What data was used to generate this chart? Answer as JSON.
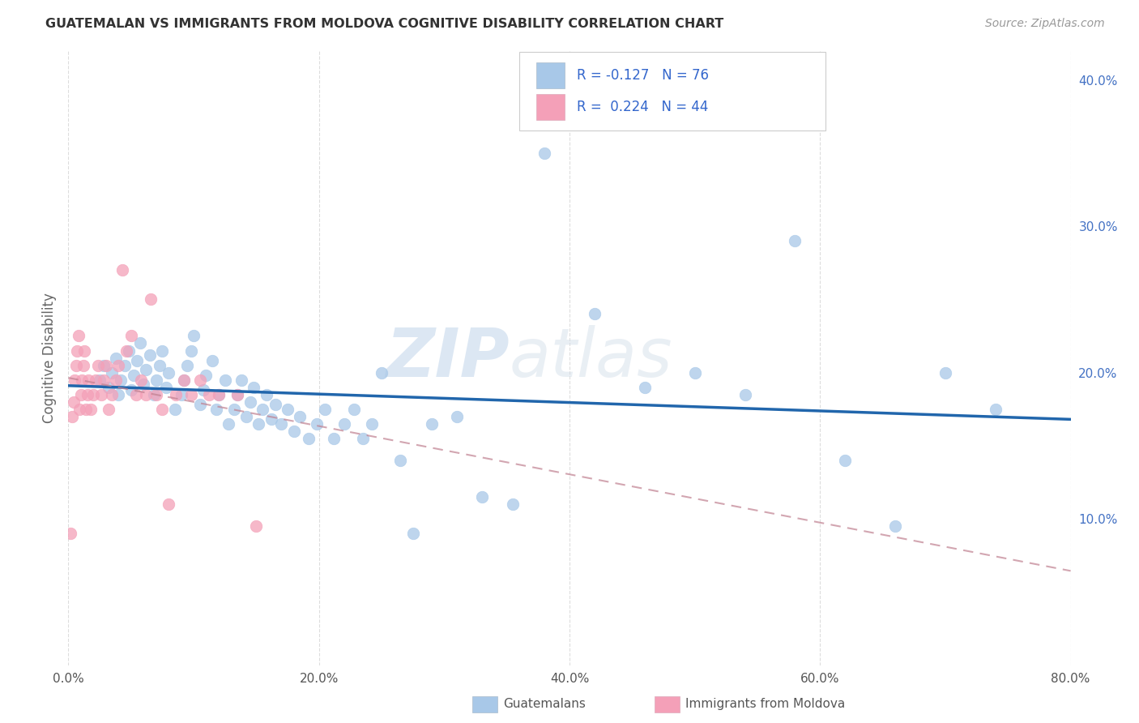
{
  "title": "GUATEMALAN VS IMMIGRANTS FROM MOLDOVA COGNITIVE DISABILITY CORRELATION CHART",
  "source": "Source: ZipAtlas.com",
  "ylabel": "Cognitive Disability",
  "legend_label1": "Guatemalans",
  "legend_label2": "Immigrants from Moldova",
  "R1": -0.127,
  "N1": 76,
  "R2": 0.224,
  "N2": 44,
  "color_blue": "#a8c8e8",
  "color_pink": "#f4a0b8",
  "line_color_blue": "#2166ac",
  "line_color_pink": "#c08090",
  "watermark_zip": "ZIP",
  "watermark_atlas": "atlas",
  "xlim": [
    0.0,
    0.8
  ],
  "ylim": [
    0.0,
    0.42
  ],
  "xticks": [
    0.0,
    0.2,
    0.4,
    0.6,
    0.8
  ],
  "yticks_right": [
    0.1,
    0.2,
    0.3,
    0.4
  ],
  "blue_x": [
    0.025,
    0.028,
    0.032,
    0.035,
    0.038,
    0.04,
    0.042,
    0.045,
    0.048,
    0.05,
    0.052,
    0.055,
    0.057,
    0.06,
    0.062,
    0.065,
    0.068,
    0.07,
    0.073,
    0.075,
    0.078,
    0.08,
    0.085,
    0.09,
    0.092,
    0.095,
    0.098,
    0.1,
    0.105,
    0.108,
    0.11,
    0.115,
    0.118,
    0.12,
    0.125,
    0.128,
    0.132,
    0.135,
    0.138,
    0.142,
    0.145,
    0.148,
    0.152,
    0.155,
    0.158,
    0.162,
    0.165,
    0.17,
    0.175,
    0.18,
    0.185,
    0.192,
    0.198,
    0.205,
    0.212,
    0.22,
    0.228,
    0.235,
    0.242,
    0.25,
    0.265,
    0.275,
    0.29,
    0.31,
    0.33,
    0.355,
    0.38,
    0.42,
    0.46,
    0.5,
    0.54,
    0.58,
    0.62,
    0.66,
    0.7,
    0.74
  ],
  "blue_y": [
    0.195,
    0.205,
    0.19,
    0.2,
    0.21,
    0.185,
    0.195,
    0.205,
    0.215,
    0.188,
    0.198,
    0.208,
    0.22,
    0.192,
    0.202,
    0.212,
    0.185,
    0.195,
    0.205,
    0.215,
    0.19,
    0.2,
    0.175,
    0.185,
    0.195,
    0.205,
    0.215,
    0.225,
    0.178,
    0.188,
    0.198,
    0.208,
    0.175,
    0.185,
    0.195,
    0.165,
    0.175,
    0.185,
    0.195,
    0.17,
    0.18,
    0.19,
    0.165,
    0.175,
    0.185,
    0.168,
    0.178,
    0.165,
    0.175,
    0.16,
    0.17,
    0.155,
    0.165,
    0.175,
    0.155,
    0.165,
    0.175,
    0.155,
    0.165,
    0.2,
    0.14,
    0.09,
    0.165,
    0.17,
    0.115,
    0.11,
    0.35,
    0.24,
    0.19,
    0.2,
    0.185,
    0.29,
    0.14,
    0.095,
    0.2,
    0.175
  ],
  "pink_x": [
    0.002,
    0.003,
    0.004,
    0.005,
    0.006,
    0.007,
    0.008,
    0.009,
    0.01,
    0.011,
    0.012,
    0.013,
    0.014,
    0.015,
    0.016,
    0.018,
    0.02,
    0.022,
    0.024,
    0.026,
    0.028,
    0.03,
    0.032,
    0.035,
    0.038,
    0.04,
    0.043,
    0.046,
    0.05,
    0.054,
    0.058,
    0.062,
    0.066,
    0.07,
    0.075,
    0.08,
    0.086,
    0.092,
    0.098,
    0.105,
    0.112,
    0.12,
    0.135,
    0.15
  ],
  "pink_y": [
    0.09,
    0.17,
    0.18,
    0.195,
    0.205,
    0.215,
    0.225,
    0.175,
    0.185,
    0.195,
    0.205,
    0.215,
    0.175,
    0.185,
    0.195,
    0.175,
    0.185,
    0.195,
    0.205,
    0.185,
    0.195,
    0.205,
    0.175,
    0.185,
    0.195,
    0.205,
    0.27,
    0.215,
    0.225,
    0.185,
    0.195,
    0.185,
    0.25,
    0.185,
    0.175,
    0.11,
    0.185,
    0.195,
    0.185,
    0.195,
    0.185,
    0.185,
    0.185,
    0.095
  ]
}
